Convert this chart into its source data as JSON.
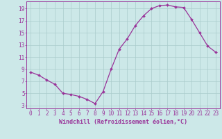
{
  "x": [
    0,
    1,
    2,
    3,
    4,
    5,
    6,
    7,
    8,
    9,
    10,
    11,
    12,
    13,
    14,
    15,
    16,
    17,
    18,
    19,
    20,
    21,
    22,
    23
  ],
  "y": [
    8.5,
    8.0,
    7.2,
    6.5,
    5.0,
    4.8,
    4.5,
    4.0,
    3.3,
    5.3,
    9.0,
    12.3,
    14.0,
    16.2,
    17.8,
    19.0,
    19.5,
    19.6,
    19.3,
    19.2,
    17.2,
    15.0,
    12.8,
    11.8
  ],
  "line_color": "#993399",
  "marker": "D",
  "marker_size": 2.0,
  "bg_color": "#cce8e8",
  "grid_color": "#aacccc",
  "xlabel": "Windchill (Refroidissement éolien,°C)",
  "yticks": [
    3,
    5,
    7,
    9,
    11,
    13,
    15,
    17,
    19
  ],
  "xticks": [
    0,
    1,
    2,
    3,
    4,
    5,
    6,
    7,
    8,
    9,
    10,
    11,
    12,
    13,
    14,
    15,
    16,
    17,
    18,
    19,
    20,
    21,
    22,
    23
  ],
  "ylim": [
    2.5,
    20.2
  ],
  "xlim": [
    -0.5,
    23.5
  ],
  "axis_color": "#993399",
  "tick_color": "#993399",
  "label_fontsize": 6.0,
  "tick_fontsize": 5.5,
  "linewidth": 0.9
}
